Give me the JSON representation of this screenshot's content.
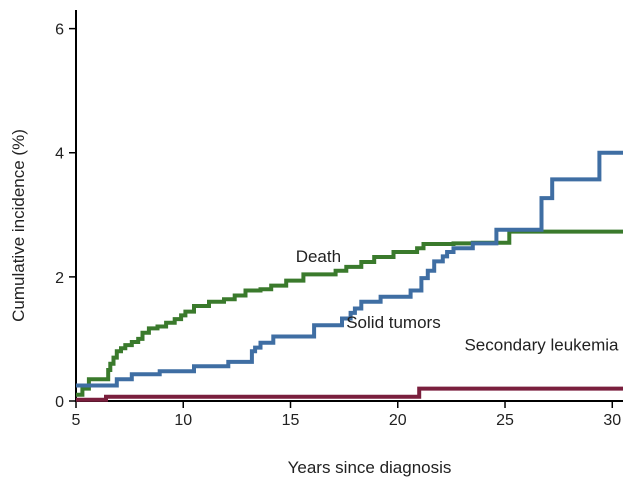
{
  "chart_data": {
    "type": "line",
    "title": "",
    "xlabel": "Years since diagnosis",
    "ylabel": "Cumulative incidence (%)",
    "xlim": [
      5,
      30.5
    ],
    "ylim": [
      0,
      6.3
    ],
    "xticks": [
      5,
      10,
      15,
      20,
      25,
      30
    ],
    "yticks": [
      0,
      2,
      4,
      6
    ],
    "xtick_labels": [
      "5",
      "10",
      "15",
      "20",
      "25",
      "30"
    ],
    "ytick_labels": [
      "0",
      "2",
      "4",
      "6"
    ],
    "grid": false,
    "legend": "direct labels",
    "series": [
      {
        "name": "Death",
        "color": "#3a7a2c",
        "step": true,
        "x": [
          5,
          5.3,
          5.6,
          6.5,
          6.6,
          6.75,
          6.9,
          7.1,
          7.3,
          7.6,
          7.9,
          8.1,
          8.4,
          8.8,
          9.2,
          9.6,
          9.9,
          10.1,
          10.5,
          11.2,
          11.9,
          12.4,
          12.9,
          13.6,
          14.1,
          14.8,
          15.6,
          16.1,
          17.1,
          17.6,
          18.3,
          18.9,
          19.8,
          20.9,
          21.2,
          22.6,
          23.5,
          24.2,
          25.2,
          27.1,
          30.5
        ],
        "y": [
          0.1,
          0.2,
          0.35,
          0.5,
          0.6,
          0.7,
          0.8,
          0.85,
          0.9,
          0.95,
          1.0,
          1.1,
          1.17,
          1.2,
          1.26,
          1.32,
          1.38,
          1.44,
          1.53,
          1.6,
          1.64,
          1.7,
          1.78,
          1.8,
          1.86,
          1.94,
          2.04,
          2.04,
          2.1,
          2.16,
          2.24,
          2.32,
          2.4,
          2.46,
          2.53,
          2.54,
          2.55,
          2.55,
          2.73,
          2.73,
          2.73
        ]
      },
      {
        "name": "Solid tumors",
        "color": "#3f6ea3",
        "step": true,
        "x": [
          5,
          6.9,
          7.6,
          8.9,
          10.5,
          12.1,
          13.2,
          13.35,
          13.6,
          14.2,
          15.1,
          16.1,
          17.4,
          17.8,
          18,
          18.3,
          19.2,
          20.6,
          21.1,
          21.4,
          21.7,
          22.1,
          22.3,
          22.6,
          23.5,
          24.6,
          26.7,
          27.2,
          29.4,
          30.5
        ],
        "y": [
          0.25,
          0.35,
          0.43,
          0.48,
          0.56,
          0.63,
          0.8,
          0.86,
          0.94,
          1.04,
          1.04,
          1.22,
          1.33,
          1.42,
          1.49,
          1.6,
          1.68,
          1.78,
          1.98,
          2.1,
          2.25,
          2.33,
          2.4,
          2.46,
          2.54,
          2.76,
          3.27,
          3.57,
          4.0,
          4.0
        ]
      },
      {
        "name": "Secondary leukemia",
        "color": "#7a1f3d",
        "step": true,
        "x": [
          5,
          6.4,
          21.0,
          30.5
        ],
        "y": [
          0.02,
          0.07,
          0.2,
          0.2
        ]
      }
    ]
  }
}
